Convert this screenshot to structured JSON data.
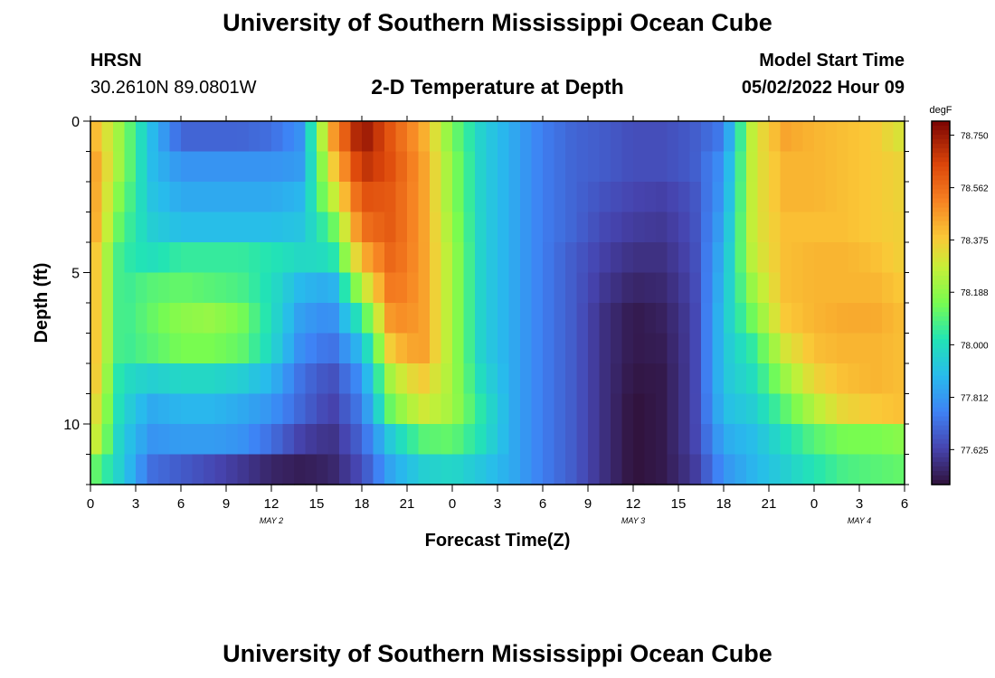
{
  "header": {
    "title": "University of Southern Mississippi Ocean Cube",
    "station": "HRSN",
    "coordinates": "30.2610N  89.0801W",
    "subtitle": "2-D Temperature at Depth",
    "model_start_label": "Model Start Time",
    "model_start_value": "05/02/2022 Hour 09"
  },
  "footer": {
    "title": "University of Southern Mississippi Ocean Cube"
  },
  "chart_data": {
    "type": "heatmap",
    "title": "2-D Temperature at Depth",
    "xlabel": "Forecast Time(Z)",
    "ylabel": "Depth (ft)",
    "colorbar_unit": "degF",
    "x_range_hours": [
      0,
      54
    ],
    "x_ticks": [
      "0",
      "3",
      "6",
      "9",
      "12",
      "15",
      "18",
      "21",
      "0",
      "3",
      "6",
      "9",
      "12",
      "15",
      "18",
      "21",
      "0",
      "3",
      "6"
    ],
    "date_labels": [
      {
        "label": "MAY 2",
        "hour": 12
      },
      {
        "label": "MAY 3",
        "hour": 36
      },
      {
        "label": "MAY 4",
        "hour": 51
      }
    ],
    "y_range_ft": [
      0,
      12
    ],
    "y_ticks": [
      "0",
      "5",
      "10"
    ],
    "depth_levels_ft": [
      0.5,
      1.5,
      2.5,
      3.5,
      4.5,
      5.5,
      6.5,
      7.5,
      8.5,
      9.5,
      10.5,
      11.5
    ],
    "colorbar_ticks": [
      "78.750",
      "78.562",
      "78.375",
      "78.188",
      "78.000",
      "77.812",
      "77.625"
    ],
    "colorbar_range": [
      77.5,
      78.8
    ],
    "hours": [
      0,
      2,
      4,
      6,
      8,
      10,
      12,
      14,
      16,
      18,
      20,
      22,
      24,
      26,
      28,
      30,
      32,
      34,
      36,
      38,
      40,
      42,
      44,
      46,
      48,
      50,
      52,
      54
    ],
    "temperature_degF": [
      [
        78.45,
        78.2,
        77.9,
        77.7,
        77.7,
        77.7,
        77.72,
        77.8,
        78.45,
        78.77,
        78.6,
        78.45,
        78.15,
        77.95,
        77.85,
        77.75,
        77.7,
        77.68,
        77.65,
        77.65,
        77.68,
        77.75,
        78.3,
        78.45,
        78.42,
        78.4,
        78.38,
        78.3
      ],
      [
        78.5,
        78.2,
        77.9,
        77.8,
        77.8,
        77.8,
        77.8,
        77.82,
        78.35,
        78.7,
        78.62,
        78.47,
        78.18,
        77.95,
        77.85,
        77.75,
        77.7,
        77.68,
        77.65,
        77.65,
        77.68,
        77.8,
        78.3,
        78.42,
        78.42,
        78.4,
        78.38,
        78.35
      ],
      [
        78.5,
        78.15,
        77.92,
        77.85,
        77.85,
        77.85,
        77.85,
        77.88,
        78.25,
        78.62,
        78.6,
        78.47,
        78.18,
        77.95,
        77.85,
        77.75,
        77.7,
        77.66,
        77.63,
        77.62,
        77.66,
        77.82,
        78.3,
        78.42,
        78.42,
        78.4,
        78.38,
        78.35
      ],
      [
        78.5,
        78.1,
        77.95,
        77.9,
        77.9,
        77.9,
        77.9,
        77.92,
        78.1,
        78.55,
        78.6,
        78.47,
        78.2,
        77.95,
        77.85,
        77.75,
        77.7,
        77.64,
        77.61,
        77.6,
        77.65,
        77.85,
        78.3,
        78.4,
        78.4,
        78.4,
        78.38,
        78.36
      ],
      [
        78.45,
        78.05,
        78.0,
        78.05,
        78.05,
        78.05,
        78.02,
        77.98,
        78.0,
        78.42,
        78.58,
        78.47,
        78.22,
        77.95,
        77.85,
        77.75,
        77.68,
        77.62,
        77.58,
        77.58,
        77.64,
        77.88,
        78.28,
        78.4,
        78.42,
        78.42,
        78.4,
        78.36
      ],
      [
        78.45,
        78.05,
        78.1,
        78.12,
        78.1,
        78.08,
        78.0,
        77.88,
        77.85,
        78.25,
        78.55,
        78.47,
        78.22,
        77.95,
        77.85,
        77.75,
        77.68,
        77.6,
        77.55,
        77.56,
        77.63,
        77.9,
        78.22,
        78.4,
        78.42,
        78.42,
        78.42,
        78.38
      ],
      [
        78.45,
        78.05,
        78.12,
        78.18,
        78.2,
        78.15,
        78.0,
        77.82,
        77.78,
        78.05,
        78.5,
        78.47,
        78.22,
        77.95,
        77.85,
        77.75,
        77.68,
        77.58,
        77.52,
        77.54,
        77.62,
        77.92,
        78.15,
        78.38,
        78.42,
        78.44,
        78.44,
        78.4
      ],
      [
        78.45,
        78.05,
        78.1,
        78.15,
        78.15,
        78.12,
        77.98,
        77.78,
        77.72,
        77.9,
        78.4,
        78.47,
        78.22,
        77.95,
        77.85,
        77.75,
        77.68,
        77.58,
        77.52,
        77.53,
        77.62,
        77.92,
        78.05,
        78.3,
        78.4,
        78.42,
        78.42,
        78.4
      ],
      [
        78.45,
        78.0,
        77.95,
        77.98,
        77.98,
        77.95,
        77.88,
        77.72,
        77.65,
        77.8,
        78.25,
        78.38,
        78.22,
        77.98,
        77.85,
        77.75,
        77.68,
        77.58,
        77.51,
        77.52,
        77.62,
        77.92,
        78.0,
        78.2,
        78.35,
        78.4,
        78.42,
        78.4
      ],
      [
        78.4,
        77.98,
        77.85,
        77.88,
        77.88,
        77.85,
        77.8,
        77.7,
        77.62,
        77.75,
        78.15,
        78.3,
        78.22,
        78.02,
        77.85,
        77.75,
        77.68,
        77.58,
        77.5,
        77.52,
        77.62,
        77.9,
        77.95,
        78.1,
        78.25,
        78.35,
        78.38,
        78.4
      ],
      [
        78.35,
        77.95,
        77.8,
        77.82,
        77.82,
        77.8,
        77.72,
        77.62,
        77.58,
        77.7,
        77.95,
        78.1,
        78.12,
        78.0,
        77.85,
        77.75,
        77.68,
        77.58,
        77.5,
        77.52,
        77.62,
        77.85,
        77.9,
        78.0,
        78.1,
        78.15,
        78.15,
        78.18
      ],
      [
        78.15,
        77.95,
        77.72,
        77.68,
        77.64,
        77.6,
        77.55,
        77.53,
        77.55,
        77.65,
        77.85,
        77.95,
        77.98,
        77.92,
        77.85,
        77.75,
        77.68,
        77.58,
        77.5,
        77.52,
        77.6,
        77.8,
        77.88,
        77.95,
        78.02,
        78.08,
        78.1,
        78.12
      ]
    ]
  }
}
